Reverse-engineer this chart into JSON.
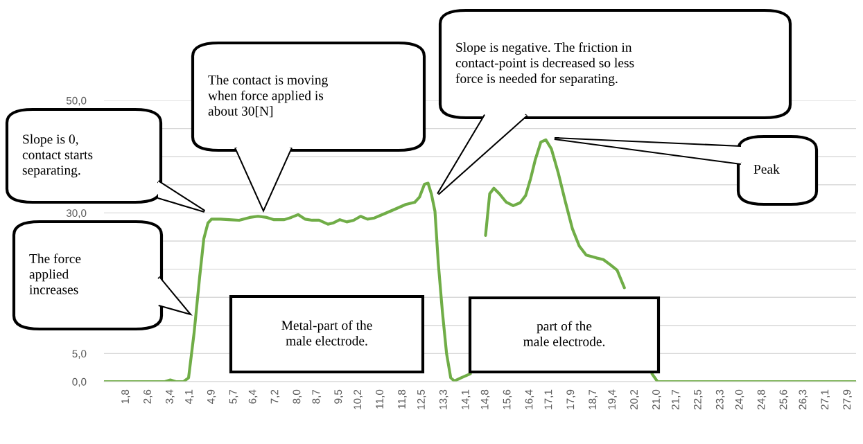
{
  "chart_data": {
    "type": "line",
    "x": [
      1.0,
      3.2,
      3.4,
      3.6,
      3.88,
      4.06,
      4.26,
      4.46,
      4.61,
      4.76,
      4.89,
      5.21,
      5.51,
      5.89,
      6.27,
      6.57,
      6.89,
      7.15,
      7.52,
      7.77,
      8.02,
      8.27,
      8.53,
      8.78,
      9.1,
      9.28,
      9.53,
      9.78,
      10.03,
      10.28,
      10.53,
      10.78,
      11.16,
      11.54,
      11.91,
      12.24,
      12.41,
      12.59,
      12.72,
      12.84,
      12.97,
      13.09,
      13.24,
      13.39,
      13.54,
      13.67,
      13.92,
      14.25,
      14.42,
      14.6,
      14.8,
      14.95,
      15.1,
      15.3,
      15.55,
      15.8,
      16.05,
      16.25,
      16.43,
      16.6,
      16.8,
      16.98,
      17.18,
      17.43,
      17.68,
      17.94,
      18.19,
      18.44,
      18.81,
      19.06,
      19.31,
      19.56,
      19.82,
      20.12,
      20.44,
      20.82,
      21.02,
      28.2
    ],
    "series": [
      {
        "color": "#70ad47",
        "values": [
          0,
          0,
          0.3,
          0,
          0,
          0.7,
          8.7,
          18.6,
          25.4,
          28.2,
          28.9,
          28.9,
          28.8,
          28.7,
          29.2,
          29.4,
          29.2,
          28.8,
          28.8,
          29.2,
          29.7,
          28.9,
          28.7,
          28.7,
          28.0,
          28.2,
          28.8,
          28.4,
          28.7,
          29.4,
          28.9,
          29.1,
          29.9,
          30.7,
          31.5,
          31.9,
          32.8,
          35.1,
          35.3,
          33.4,
          30.3,
          21.1,
          12.4,
          5.0,
          0.7,
          0.1,
          0.7,
          1.4,
          null,
          null,
          26.0,
          33.4,
          34.4,
          33.4,
          31.9,
          31.3,
          31.8,
          33.1,
          36.1,
          39.5,
          42.6,
          43.0,
          41.4,
          37.1,
          32.1,
          27.2,
          24.1,
          22.5,
          22.0,
          21.7,
          20.8,
          19.8,
          16.7,
          null,
          null,
          1.4,
          0,
          0
        ]
      }
    ],
    "xlim": [
      1.0,
      28.2
    ],
    "xticks": [
      {
        "value": 1.8,
        "label": "1,8"
      },
      {
        "value": 2.6,
        "label": "2,6"
      },
      {
        "value": 3.4,
        "label": "3,4"
      },
      {
        "value": 4.1,
        "label": "4,1"
      },
      {
        "value": 4.9,
        "label": "4,9"
      },
      {
        "value": 5.7,
        "label": "5,7"
      },
      {
        "value": 6.4,
        "label": "6,4"
      },
      {
        "value": 7.2,
        "label": "7,2"
      },
      {
        "value": 8.0,
        "label": "8,0"
      },
      {
        "value": 8.7,
        "label": "8,7"
      },
      {
        "value": 9.5,
        "label": "9,5"
      },
      {
        "value": 10.2,
        "label": "10,2"
      },
      {
        "value": 11.0,
        "label": "11,0"
      },
      {
        "value": 11.8,
        "label": "11,8"
      },
      {
        "value": 12.5,
        "label": "12,5"
      },
      {
        "value": 13.3,
        "label": "13,3"
      },
      {
        "value": 14.1,
        "label": "14,1"
      },
      {
        "value": 14.8,
        "label": "14,8"
      },
      {
        "value": 15.6,
        "label": "15,6"
      },
      {
        "value": 16.4,
        "label": "16,4"
      },
      {
        "value": 17.1,
        "label": "17,1"
      },
      {
        "value": 17.9,
        "label": "17,9"
      },
      {
        "value": 18.7,
        "label": "18,7"
      },
      {
        "value": 19.4,
        "label": "19,4"
      },
      {
        "value": 20.2,
        "label": "20,2"
      },
      {
        "value": 21.0,
        "label": "21,0"
      },
      {
        "value": 21.7,
        "label": "21,7"
      },
      {
        "value": 22.5,
        "label": "22,5"
      },
      {
        "value": 23.3,
        "label": "23,3"
      },
      {
        "value": 24.0,
        "label": "24,0"
      },
      {
        "value": 24.8,
        "label": "24,8"
      },
      {
        "value": 25.6,
        "label": "25,6"
      },
      {
        "value": 26.3,
        "label": "26,3"
      },
      {
        "value": 27.1,
        "label": "27,1"
      },
      {
        "value": 27.9,
        "label": "27,9"
      }
    ],
    "ylim": [
      0,
      50
    ],
    "yticks": [
      {
        "value": 0,
        "label": "0,0"
      },
      {
        "value": 5,
        "label": "5,0"
      },
      {
        "value": 10,
        "label": null
      },
      {
        "value": 15,
        "label": null
      },
      {
        "value": 20,
        "label": null
      },
      {
        "value": 25,
        "label": null
      },
      {
        "value": 30,
        "label": "30,0"
      },
      {
        "value": 35,
        "label": null
      },
      {
        "value": 40,
        "label": null
      },
      {
        "value": 45,
        "label": null
      },
      {
        "value": 50,
        "label": "50,0"
      }
    ],
    "grid": "y",
    "marker": "none",
    "line_style": "solid",
    "annotations": [
      "Slope is 0,\ncontact starts\nseparating.",
      "The contact is moving\nwhen force applied is\nabout 30[N]",
      "Slope is negative. The friction in\ncontact-point is decreased so less\nforce is needed for separating.",
      "Peak",
      "The force\napplied\nincreases",
      "Metal-part of the\nmale electrode.",
      "part of the\nmale electrode."
    ]
  }
}
